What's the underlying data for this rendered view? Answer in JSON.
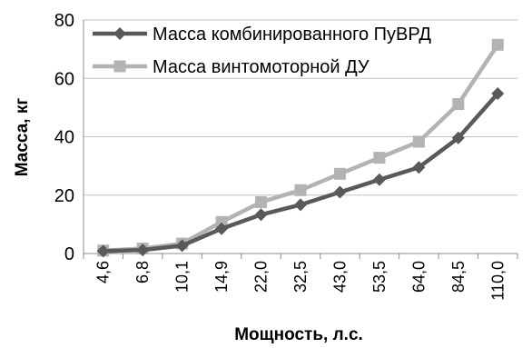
{
  "chart_data": {
    "type": "line",
    "title": "",
    "xlabel": "Мощность, л.с.",
    "ylabel": "Масса, кг",
    "categories": [
      "4,6",
      "6,8",
      "10,1",
      "14,9",
      "22,0",
      "32,5",
      "43,0",
      "53,5",
      "64,0",
      "84,5",
      "110,0"
    ],
    "ylim": [
      0,
      80
    ],
    "yticks": [
      "0",
      "20",
      "40",
      "60",
      "80"
    ],
    "grid": "horizontal",
    "legend": "top-left",
    "series": [
      {
        "name": "Масса комбинированного ПуВРД",
        "marker": "diamond",
        "color": "#595959",
        "values": [
          0.8,
          1.2,
          2.7,
          8.5,
          13.3,
          16.7,
          21.0,
          25.3,
          29.5,
          39.6,
          54.8
        ]
      },
      {
        "name": "Масса винтомоторной ДУ",
        "marker": "square",
        "color": "#b3b3b3",
        "values": [
          1.0,
          1.7,
          3.4,
          10.8,
          17.6,
          21.7,
          27.3,
          32.8,
          38.3,
          51.2,
          71.5
        ]
      }
    ]
  }
}
